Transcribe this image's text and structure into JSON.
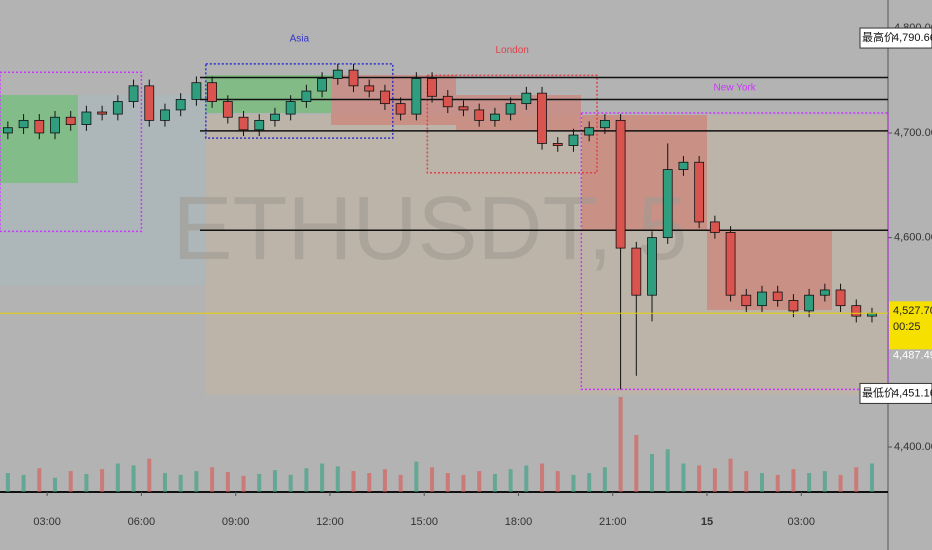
{
  "chart_data": {
    "type": "candlestick",
    "watermark": "ETHUSDT, 5",
    "up_color": "#2e9e7e",
    "down_color": "#d9534f",
    "xlim": [
      1.5,
      29.76
    ],
    "xticks": [
      {
        "value": 3,
        "label": "03:00"
      },
      {
        "value": 6,
        "label": "06:00"
      },
      {
        "value": 9,
        "label": "09:00"
      },
      {
        "value": 12,
        "label": "12:00"
      },
      {
        "value": 15,
        "label": "15:00"
      },
      {
        "value": 18,
        "label": "18:00"
      },
      {
        "value": 21,
        "label": "21:00"
      },
      {
        "value": 24,
        "label": "15"
      },
      {
        "value": 27,
        "label": "03:00"
      }
    ],
    "ylim": [
      4357,
      4827
    ],
    "yticks": [
      {
        "value": 4800,
        "label": "4,800.00"
      },
      {
        "value": 4700,
        "label": "4,700.00"
      },
      {
        "value": 4600,
        "label": "4,600.00"
      },
      {
        "value": 4400,
        "label": "4,400.00"
      }
    ],
    "x": [
      1.75,
      2.25,
      2.75,
      3.25,
      3.75,
      4.25,
      4.75,
      5.25,
      5.75,
      6.25,
      6.75,
      7.25,
      7.75,
      8.25,
      8.75,
      9.25,
      9.75,
      10.25,
      10.75,
      11.25,
      11.75,
      12.25,
      12.75,
      13.25,
      13.75,
      14.25,
      14.75,
      15.25,
      15.75,
      16.25,
      16.75,
      17.25,
      17.75,
      18.25,
      18.75,
      19.25,
      19.75,
      20.25,
      20.75,
      21.25,
      21.75,
      22.25,
      22.75,
      23.25,
      23.75,
      24.25,
      24.75,
      25.25,
      25.75,
      26.25,
      26.75,
      27.25,
      27.75,
      28.25,
      28.75,
      29.25
    ],
    "open": [
      4700,
      4705,
      4712,
      4700,
      4715,
      4708,
      4720,
      4718,
      4730,
      4745,
      4712,
      4722,
      4732,
      4748,
      4730,
      4715,
      4703,
      4712,
      4718,
      4730,
      4740,
      4752,
      4760,
      4745,
      4740,
      4728,
      4718,
      4752,
      4735,
      4725,
      4722,
      4712,
      4718,
      4728,
      4738,
      4690,
      4688,
      4698,
      4705,
      4712,
      4590,
      4545,
      4600,
      4665,
      4672,
      4615,
      4605,
      4545,
      4535,
      4548,
      4540,
      4530,
      4545,
      4550,
      4535,
      4525
    ],
    "high": [
      4711,
      4718,
      4718,
      4721,
      4721,
      4726,
      4726,
      4736,
      4751,
      4751,
      4728,
      4738,
      4754,
      4754,
      4736,
      4721,
      4718,
      4724,
      4736,
      4746,
      4758,
      4766,
      4766,
      4751,
      4746,
      4734,
      4758,
      4758,
      4741,
      4731,
      4728,
      4724,
      4734,
      4744,
      4744,
      4696,
      4704,
      4711,
      4718,
      4718,
      4596,
      4606,
      4690,
      4678,
      4678,
      4621,
      4611,
      4551,
      4554,
      4554,
      4546,
      4551,
      4556,
      4556,
      4541,
      4533
    ],
    "low": [
      4694,
      4699,
      4694,
      4694,
      4702,
      4702,
      4712,
      4712,
      4724,
      4706,
      4706,
      4716,
      4726,
      4724,
      4709,
      4697,
      4697,
      4706,
      4712,
      4724,
      4734,
      4746,
      4739,
      4734,
      4722,
      4712,
      4712,
      4729,
      4719,
      4716,
      4706,
      4706,
      4712,
      4722,
      4684,
      4682,
      4682,
      4692,
      4699,
      4455,
      4468,
      4520,
      4594,
      4659,
      4609,
      4599,
      4539,
      4529,
      4529,
      4534,
      4524,
      4524,
      4539,
      4529,
      4519,
      4519
    ],
    "close": [
      4705,
      4712,
      4700,
      4715,
      4708,
      4720,
      4718,
      4730,
      4745,
      4712,
      4722,
      4732,
      4748,
      4730,
      4715,
      4703,
      4712,
      4718,
      4730,
      4740,
      4752,
      4760,
      4745,
      4740,
      4728,
      4718,
      4752,
      4735,
      4725,
      4722,
      4712,
      4718,
      4728,
      4738,
      4690,
      4688,
      4698,
      4705,
      4712,
      4590,
      4545,
      4600,
      4665,
      4672,
      4615,
      4605,
      4545,
      4535,
      4548,
      4540,
      4530,
      4545,
      4550,
      4535,
      4525,
      4527.7
    ],
    "volume": [
      20,
      18,
      25,
      15,
      22,
      19,
      24,
      30,
      28,
      35,
      20,
      18,
      22,
      26,
      21,
      17,
      19,
      23,
      18,
      25,
      30,
      27,
      22,
      20,
      24,
      18,
      32,
      26,
      20,
      18,
      22,
      19,
      24,
      28,
      30,
      22,
      18,
      20,
      26,
      100,
      60,
      40,
      45,
      30,
      28,
      25,
      35,
      22,
      20,
      18,
      24,
      20,
      22,
      18,
      26,
      30
    ],
    "levels": [
      4753,
      4732,
      4702,
      4607
    ],
    "sessions": [
      {
        "name": null,
        "start": 1.5,
        "end": 6.0,
        "high": 4758,
        "low": 4606,
        "color": "#cc33ff"
      },
      {
        "name": "Asia",
        "start": 8.05,
        "end": 14.0,
        "high": 4766,
        "low": 4695,
        "color": "#3333cc"
      },
      {
        "name": "London",
        "start": 15.1,
        "end": 20.5,
        "high": 4755,
        "low": 4662,
        "color": "#e0404a"
      },
      {
        "name": "New York",
        "start": 20.0,
        "end": 29.76,
        "high": 4719,
        "low": 4455,
        "color": "#cc33ff"
      }
    ],
    "price_labels": [
      {
        "name": "最高价",
        "value": 4790.66,
        "label": "4,790.66"
      },
      {
        "name": "最低价",
        "value": 4451.16,
        "label": "4,451.16"
      }
    ],
    "last_price": {
      "value": 4527.7,
      "label": "4,527.70"
    },
    "countdown": "00:25",
    "prev_price": {
      "value": 4487.49,
      "label": "4,487.49"
    }
  }
}
